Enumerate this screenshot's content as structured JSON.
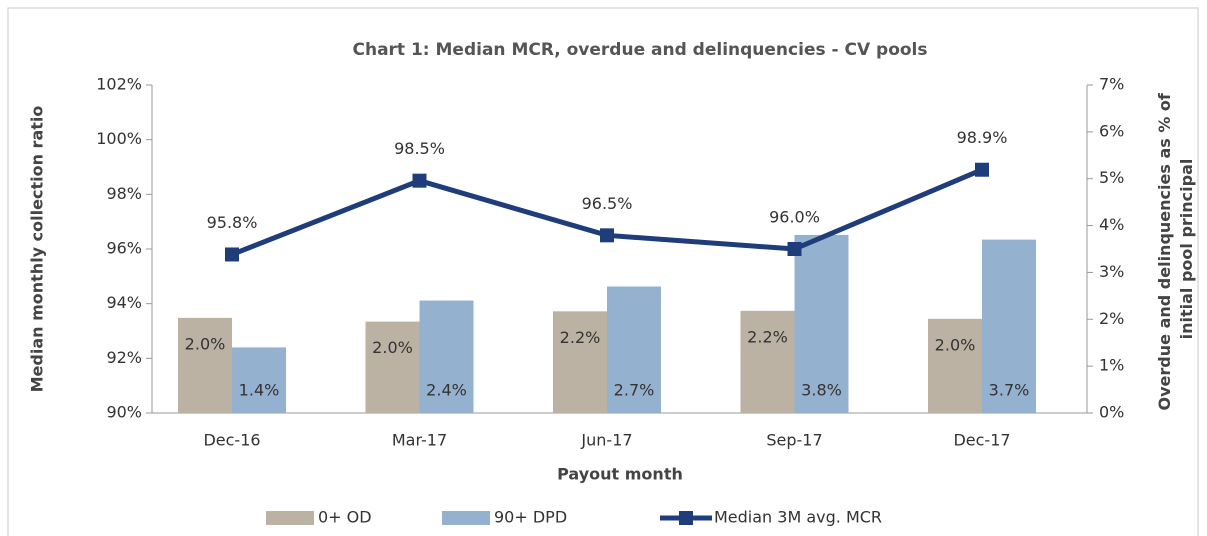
{
  "chart_data": {
    "type": "combo",
    "title": "Chart 1: Median MCR, overdue and delinquencies - CV pools",
    "x_label": "Payout month",
    "y_label": "Median monthly collection ratio",
    "y2_label": "Overdue and delinquencies as % of initial pool principal",
    "categories": [
      "Dec-16",
      "Mar-17",
      "Jun-17",
      "Sep-17",
      "Dec-17"
    ],
    "series": [
      {
        "name": "0+ OD",
        "type": "bar",
        "axis": "y2",
        "color": "#bcb2a4",
        "values": [
          2.03,
          1.95,
          2.17,
          2.18,
          2.01
        ],
        "value_labels": [
          "2.0%",
          "2.0%",
          "2.2%",
          "2.2%",
          "2.0%"
        ]
      },
      {
        "name": "90+ DPD",
        "type": "bar",
        "axis": "y2",
        "color": "#94b2cf",
        "values": [
          1.4,
          2.4,
          2.7,
          3.8,
          3.7
        ],
        "value_labels": [
          "1.4%",
          "2.4%",
          "2.7%",
          "3.8%",
          "3.7%"
        ]
      },
      {
        "name": "Median 3M avg. MCR",
        "type": "line",
        "axis": "y",
        "color": "#1f3d7a",
        "values": [
          95.8,
          98.5,
          96.5,
          96.0,
          98.9
        ],
        "value_labels": [
          "95.8%",
          "98.5%",
          "96.5%",
          "96.0%",
          "98.9%"
        ]
      }
    ],
    "ylim": [
      90,
      102
    ],
    "yticks": [
      {
        "value": 90,
        "label": "90%"
      },
      {
        "value": 92,
        "label": "92%"
      },
      {
        "value": 94,
        "label": "94%"
      },
      {
        "value": 96,
        "label": "96%"
      },
      {
        "value": 98,
        "label": "98%"
      },
      {
        "value": 100,
        "label": "100%"
      },
      {
        "value": 102,
        "label": "102%"
      }
    ],
    "y2lim": [
      0,
      7
    ],
    "y2ticks": [
      {
        "value": 0,
        "label": "0%"
      },
      {
        "value": 1,
        "label": "1%"
      },
      {
        "value": 2,
        "label": "2%"
      },
      {
        "value": 3,
        "label": "3%"
      },
      {
        "value": 4,
        "label": "4%"
      },
      {
        "value": 5,
        "label": "5%"
      },
      {
        "value": 6,
        "label": "6%"
      },
      {
        "value": 7,
        "label": "7%"
      }
    ],
    "legend": "bottom"
  }
}
